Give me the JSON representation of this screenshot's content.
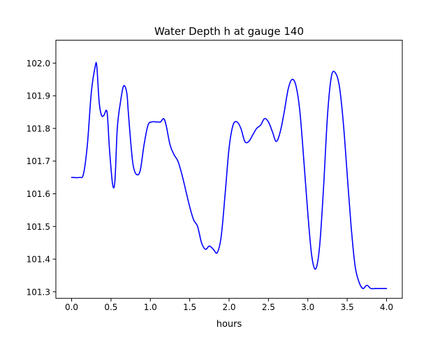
{
  "chart_data": {
    "type": "line",
    "title": "Water Depth h at gauge 140",
    "xlabel": "hours",
    "ylabel": "",
    "xlim": [
      -0.2,
      4.2
    ],
    "ylim": [
      101.28,
      102.07
    ],
    "x_ticks": [
      0.0,
      0.5,
      1.0,
      1.5,
      2.0,
      2.5,
      3.0,
      3.5,
      4.0
    ],
    "x_tick_labels": [
      "0.0",
      "0.5",
      "1.0",
      "1.5",
      "2.0",
      "2.5",
      "3.0",
      "3.5",
      "4.0"
    ],
    "y_ticks": [
      101.3,
      101.4,
      101.5,
      101.6,
      101.7,
      101.8,
      101.9,
      102.0
    ],
    "y_tick_labels": [
      "101.3",
      "101.4",
      "101.5",
      "101.6",
      "101.7",
      "101.8",
      "101.9",
      "102.0"
    ],
    "grid": false,
    "series": [
      {
        "color": "#0000ff",
        "x": [
          0.0,
          0.1,
          0.15,
          0.2,
          0.25,
          0.3,
          0.32,
          0.35,
          0.38,
          0.41,
          0.45,
          0.48,
          0.52,
          0.55,
          0.58,
          0.62,
          0.66,
          0.7,
          0.72,
          0.75,
          0.78,
          0.82,
          0.87,
          0.92,
          0.97,
          1.02,
          1.07,
          1.1,
          1.13,
          1.17,
          1.2,
          1.25,
          1.3,
          1.35,
          1.4,
          1.45,
          1.5,
          1.55,
          1.6,
          1.65,
          1.7,
          1.75,
          1.8,
          1.85,
          1.9,
          1.95,
          2.0,
          2.05,
          2.1,
          2.15,
          2.2,
          2.25,
          2.3,
          2.35,
          2.4,
          2.45,
          2.5,
          2.55,
          2.6,
          2.65,
          2.7,
          2.75,
          2.8,
          2.85,
          2.9,
          2.95,
          3.0,
          3.05,
          3.1,
          3.15,
          3.2,
          3.25,
          3.3,
          3.35,
          3.4,
          3.45,
          3.5,
          3.55,
          3.6,
          3.65,
          3.7,
          3.75,
          3.8,
          3.85,
          3.9,
          3.95,
          3.98,
          4.0
        ],
        "y": [
          101.65,
          101.65,
          101.66,
          101.75,
          101.91,
          101.99,
          101.99,
          101.88,
          101.84,
          101.84,
          101.85,
          101.74,
          101.63,
          101.64,
          101.8,
          101.88,
          101.93,
          101.91,
          101.85,
          101.76,
          101.69,
          101.66,
          101.67,
          101.75,
          101.81,
          101.82,
          101.82,
          101.82,
          101.82,
          101.83,
          101.81,
          101.75,
          101.72,
          101.7,
          101.66,
          101.61,
          101.56,
          101.52,
          101.5,
          101.45,
          101.43,
          101.44,
          101.43,
          101.42,
          101.47,
          101.6,
          101.74,
          101.81,
          101.82,
          101.8,
          101.76,
          101.76,
          101.78,
          101.8,
          101.81,
          101.83,
          101.82,
          101.79,
          101.76,
          101.79,
          101.85,
          101.92,
          101.95,
          101.93,
          101.85,
          101.7,
          101.54,
          101.41,
          101.37,
          101.44,
          101.62,
          101.84,
          101.96,
          101.97,
          101.93,
          101.82,
          101.66,
          101.5,
          101.38,
          101.33,
          101.31,
          101.32,
          101.31,
          101.31,
          101.31,
          101.31,
          101.31,
          101.31
        ]
      }
    ]
  }
}
